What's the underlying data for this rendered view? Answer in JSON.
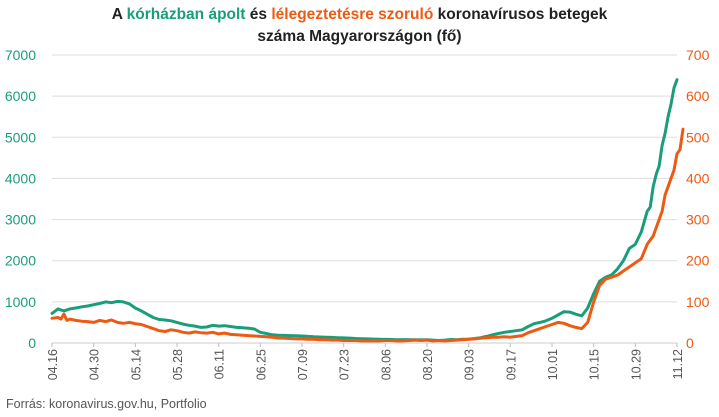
{
  "title": {
    "part1": "A ",
    "green_text": "kórházban ápolt",
    "part2": " és ",
    "orange_text": "lélegeztetésre szoruló",
    "part3": " koronavírusos betegek",
    "line2": "száma Magyarországon  (fő)"
  },
  "source": "Forrás: koronavirus.gov.hu, Portfolio",
  "colors": {
    "hospitalized": "#1a9e7a",
    "ventilated": "#ee5a12",
    "grid": "#dddddd",
    "text": "#555555"
  },
  "chart_data": {
    "type": "line",
    "title": "A kórházban ápolt és lélegeztetésre szoruló koronavírusos betegek száma Magyarországon (fő)",
    "x_ticks": [
      "04.16",
      "04.30",
      "05.14",
      "05.28",
      "06.11",
      "06.25",
      "07.09",
      "07.23",
      "08.06",
      "08.20",
      "09.03",
      "09.17",
      "10.01",
      "10.15",
      "10.29",
      "11.12"
    ],
    "y_left": {
      "ticks": [
        "0",
        "1000",
        "2000",
        "3000",
        "4000",
        "5000",
        "6000",
        "7000"
      ],
      "ylim": [
        0,
        7000
      ]
    },
    "y_right": {
      "ticks": [
        "0",
        "100",
        "200",
        "300",
        "400",
        "500",
        "600",
        "700"
      ],
      "ylim": [
        0,
        700
      ]
    },
    "grid": true,
    "x_day_range": [
      0,
      210
    ],
    "series": [
      {
        "axis": "left",
        "points": [
          [
            0,
            720
          ],
          [
            2,
            830
          ],
          [
            4,
            780
          ],
          [
            6,
            830
          ],
          [
            8,
            850
          ],
          [
            10,
            880
          ],
          [
            12,
            900
          ],
          [
            14,
            930
          ],
          [
            16,
            960
          ],
          [
            18,
            1000
          ],
          [
            20,
            980
          ],
          [
            22,
            1010
          ],
          [
            24,
            1000
          ],
          [
            26,
            950
          ],
          [
            28,
            850
          ],
          [
            30,
            780
          ],
          [
            32,
            700
          ],
          [
            34,
            620
          ],
          [
            36,
            570
          ],
          [
            38,
            560
          ],
          [
            40,
            540
          ],
          [
            42,
            500
          ],
          [
            44,
            460
          ],
          [
            46,
            430
          ],
          [
            48,
            410
          ],
          [
            50,
            380
          ],
          [
            52,
            390
          ],
          [
            54,
            430
          ],
          [
            56,
            410
          ],
          [
            58,
            420
          ],
          [
            60,
            400
          ],
          [
            62,
            380
          ],
          [
            64,
            370
          ],
          [
            66,
            360
          ],
          [
            68,
            340
          ],
          [
            70,
            260
          ],
          [
            72,
            230
          ],
          [
            74,
            200
          ],
          [
            76,
            190
          ],
          [
            78,
            185
          ],
          [
            80,
            180
          ],
          [
            82,
            175
          ],
          [
            84,
            170
          ],
          [
            86,
            160
          ],
          [
            88,
            150
          ],
          [
            90,
            145
          ],
          [
            92,
            140
          ],
          [
            94,
            135
          ],
          [
            96,
            130
          ],
          [
            98,
            125
          ],
          [
            100,
            120
          ],
          [
            102,
            110
          ],
          [
            104,
            105
          ],
          [
            106,
            100
          ],
          [
            108,
            95
          ],
          [
            110,
            90
          ],
          [
            112,
            88
          ],
          [
            114,
            85
          ],
          [
            116,
            80
          ],
          [
            118,
            82
          ],
          [
            120,
            80
          ],
          [
            122,
            78
          ],
          [
            124,
            75
          ],
          [
            126,
            80
          ],
          [
            128,
            70
          ],
          [
            130,
            60
          ],
          [
            132,
            70
          ],
          [
            134,
            85
          ],
          [
            136,
            80
          ],
          [
            138,
            90
          ],
          [
            140,
            95
          ],
          [
            142,
            110
          ],
          [
            144,
            130
          ],
          [
            146,
            160
          ],
          [
            148,
            200
          ],
          [
            150,
            230
          ],
          [
            152,
            260
          ],
          [
            154,
            280
          ],
          [
            156,
            300
          ],
          [
            158,
            320
          ],
          [
            160,
            400
          ],
          [
            162,
            470
          ],
          [
            164,
            500
          ],
          [
            166,
            540
          ],
          [
            168,
            600
          ],
          [
            170,
            680
          ],
          [
            172,
            760
          ],
          [
            174,
            750
          ],
          [
            176,
            700
          ],
          [
            178,
            660
          ],
          [
            180,
            850
          ],
          [
            182,
            1200
          ],
          [
            184,
            1500
          ],
          [
            186,
            1600
          ],
          [
            188,
            1650
          ],
          [
            190,
            1800
          ],
          [
            192,
            2000
          ],
          [
            194,
            2300
          ],
          [
            196,
            2400
          ],
          [
            198,
            2700
          ],
          [
            200,
            3200
          ],
          [
            201,
            3300
          ],
          [
            202,
            3800
          ],
          [
            203,
            4100
          ],
          [
            204,
            4300
          ],
          [
            205,
            4800
          ],
          [
            206,
            5100
          ],
          [
            207,
            5500
          ],
          [
            208,
            5800
          ],
          [
            209,
            6200
          ],
          [
            210,
            6400
          ]
        ]
      },
      {
        "axis": "right",
        "points": [
          [
            0,
            60
          ],
          [
            2,
            62
          ],
          [
            3,
            58
          ],
          [
            4,
            70
          ],
          [
            5,
            55
          ],
          [
            6,
            58
          ],
          [
            8,
            55
          ],
          [
            10,
            53
          ],
          [
            12,
            52
          ],
          [
            14,
            50
          ],
          [
            16,
            55
          ],
          [
            18,
            52
          ],
          [
            20,
            56
          ],
          [
            22,
            50
          ],
          [
            24,
            48
          ],
          [
            26,
            50
          ],
          [
            28,
            47
          ],
          [
            30,
            45
          ],
          [
            32,
            40
          ],
          [
            34,
            35
          ],
          [
            36,
            30
          ],
          [
            38,
            28
          ],
          [
            40,
            32
          ],
          [
            42,
            30
          ],
          [
            44,
            26
          ],
          [
            46,
            24
          ],
          [
            48,
            27
          ],
          [
            50,
            25
          ],
          [
            52,
            24
          ],
          [
            54,
            26
          ],
          [
            56,
            22
          ],
          [
            58,
            24
          ],
          [
            60,
            21
          ],
          [
            62,
            20
          ],
          [
            64,
            19
          ],
          [
            66,
            18
          ],
          [
            68,
            17
          ],
          [
            70,
            16
          ],
          [
            72,
            15
          ],
          [
            74,
            14
          ],
          [
            76,
            12
          ],
          [
            78,
            12
          ],
          [
            80,
            11
          ],
          [
            82,
            10
          ],
          [
            84,
            10
          ],
          [
            86,
            9
          ],
          [
            88,
            9
          ],
          [
            90,
            8
          ],
          [
            92,
            8
          ],
          [
            94,
            7
          ],
          [
            96,
            7
          ],
          [
            98,
            6
          ],
          [
            100,
            6
          ],
          [
            102,
            6
          ],
          [
            104,
            5
          ],
          [
            106,
            5
          ],
          [
            108,
            5
          ],
          [
            110,
            5
          ],
          [
            112,
            6
          ],
          [
            114,
            6
          ],
          [
            116,
            5
          ],
          [
            118,
            5
          ],
          [
            120,
            6
          ],
          [
            122,
            7
          ],
          [
            124,
            6
          ],
          [
            126,
            7
          ],
          [
            128,
            5
          ],
          [
            130,
            6
          ],
          [
            132,
            5
          ],
          [
            134,
            6
          ],
          [
            136,
            7
          ],
          [
            138,
            8
          ],
          [
            140,
            9
          ],
          [
            142,
            10
          ],
          [
            144,
            12
          ],
          [
            146,
            13
          ],
          [
            148,
            14
          ],
          [
            150,
            14
          ],
          [
            152,
            15
          ],
          [
            154,
            14
          ],
          [
            156,
            16
          ],
          [
            158,
            18
          ],
          [
            160,
            25
          ],
          [
            162,
            30
          ],
          [
            164,
            35
          ],
          [
            166,
            40
          ],
          [
            168,
            45
          ],
          [
            170,
            50
          ],
          [
            172,
            48
          ],
          [
            174,
            42
          ],
          [
            176,
            38
          ],
          [
            178,
            35
          ],
          [
            180,
            50
          ],
          [
            182,
            100
          ],
          [
            184,
            140
          ],
          [
            186,
            155
          ],
          [
            188,
            160
          ],
          [
            190,
            165
          ],
          [
            192,
            175
          ],
          [
            194,
            185
          ],
          [
            196,
            195
          ],
          [
            198,
            205
          ],
          [
            200,
            240
          ],
          [
            202,
            260
          ],
          [
            204,
            300
          ],
          [
            205,
            320
          ],
          [
            206,
            360
          ],
          [
            207,
            380
          ],
          [
            208,
            400
          ],
          [
            209,
            420
          ],
          [
            210,
            460
          ],
          [
            211,
            470
          ],
          [
            212,
            520
          ]
        ]
      }
    ]
  }
}
